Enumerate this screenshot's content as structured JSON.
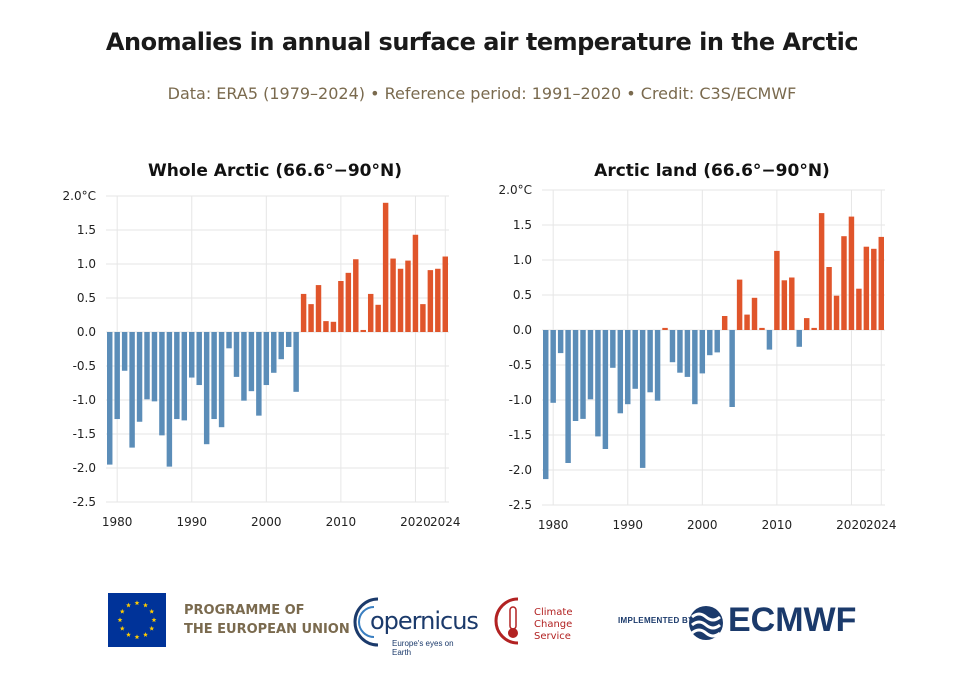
{
  "header": {
    "title": "Anomalies in annual surface air temperature in the Arctic",
    "subtitle": "Data: ERA5 (1979–2024) • Reference period: 1991–2020 • Credit: C3S/ECMWF"
  },
  "colors": {
    "negative": "#5b8db8",
    "positive": "#e0552b",
    "grid": "#e6e6e6"
  },
  "chart_data": [
    {
      "type": "bar",
      "title": "Whole Arctic (66.6°−90°N)",
      "x": [
        1979,
        1980,
        1981,
        1982,
        1983,
        1984,
        1985,
        1986,
        1987,
        1988,
        1989,
        1990,
        1991,
        1992,
        1993,
        1994,
        1995,
        1996,
        1997,
        1998,
        1999,
        2000,
        2001,
        2002,
        2003,
        2004,
        2005,
        2006,
        2007,
        2008,
        2009,
        2010,
        2011,
        2012,
        2013,
        2014,
        2015,
        2016,
        2017,
        2018,
        2019,
        2020,
        2021,
        2022,
        2023,
        2024
      ],
      "values": [
        -1.95,
        -1.28,
        -0.57,
        -1.7,
        -1.32,
        -0.99,
        -1.02,
        -1.52,
        -1.98,
        -1.28,
        -1.3,
        -0.67,
        -0.78,
        -1.65,
        -1.28,
        -1.4,
        -0.24,
        -0.66,
        -1.01,
        -0.87,
        -1.23,
        -0.78,
        -0.6,
        -0.4,
        -0.22,
        -0.88,
        0.56,
        0.41,
        0.69,
        0.16,
        0.15,
        0.75,
        0.87,
        1.07,
        0.03,
        0.56,
        0.4,
        1.9,
        1.08,
        0.93,
        1.05,
        1.43,
        0.41,
        0.91,
        0.93,
        1.11
      ],
      "ylim": [
        -2.5,
        2.0
      ],
      "yticks": [
        "2.0°C",
        "1.5",
        "1.0",
        "0.5",
        "0.0",
        "-0.5",
        "-1.0",
        "-1.5",
        "-2.0",
        "-2.5"
      ],
      "ytick_values": [
        2.0,
        1.5,
        1.0,
        0.5,
        0.0,
        -0.5,
        -1.0,
        -1.5,
        -2.0,
        -2.5
      ],
      "xticks": [
        "1980",
        "1990",
        "2000",
        "2010",
        "2020",
        "2024"
      ],
      "xtick_values": [
        1980,
        1990,
        2000,
        2010,
        2020,
        2024
      ],
      "grid": true
    },
    {
      "type": "bar",
      "title": "Arctic land (66.6°−90°N)",
      "x": [
        1979,
        1980,
        1981,
        1982,
        1983,
        1984,
        1985,
        1986,
        1987,
        1988,
        1989,
        1990,
        1991,
        1992,
        1993,
        1994,
        1995,
        1996,
        1997,
        1998,
        1999,
        2000,
        2001,
        2002,
        2003,
        2004,
        2005,
        2006,
        2007,
        2008,
        2009,
        2010,
        2011,
        2012,
        2013,
        2014,
        2015,
        2016,
        2017,
        2018,
        2019,
        2020,
        2021,
        2022,
        2023,
        2024
      ],
      "values": [
        -2.13,
        -1.04,
        -0.33,
        -1.9,
        -1.3,
        -1.27,
        -0.99,
        -1.52,
        -1.7,
        -0.54,
        -1.19,
        -1.06,
        -0.84,
        -1.97,
        -0.89,
        -1.01,
        0.03,
        -0.46,
        -0.61,
        -0.67,
        -1.06,
        -0.62,
        -0.36,
        -0.32,
        0.2,
        -1.1,
        0.72,
        0.22,
        0.46,
        0.03,
        -0.28,
        1.13,
        0.71,
        0.75,
        -0.24,
        0.17,
        0.03,
        1.67,
        0.9,
        0.49,
        1.34,
        1.62,
        0.59,
        1.19,
        1.16,
        1.33
      ],
      "ylim": [
        -2.5,
        2.0
      ],
      "yticks": [
        "2.0°C",
        "1.5",
        "1.0",
        "0.5",
        "0.0",
        "-0.5",
        "-1.0",
        "-1.5",
        "-2.0",
        "-2.5"
      ],
      "ytick_values": [
        2.0,
        1.5,
        1.0,
        0.5,
        0.0,
        -0.5,
        -1.0,
        -1.5,
        -2.0,
        -2.5
      ],
      "xticks": [
        "1980",
        "1990",
        "2000",
        "2010",
        "2020",
        "2024"
      ],
      "xtick_values": [
        1980,
        1990,
        2000,
        2010,
        2020,
        2024
      ],
      "grid": true
    }
  ],
  "footer": {
    "eu_text_line1": "PROGRAMME OF",
    "eu_text_line2": "THE EUROPEAN UNION",
    "copernicus": "opernicus",
    "copernicus_tag": "Europe's eyes on Earth",
    "c3s_line1": "Climate",
    "c3s_line2": "Change Service",
    "implemented_by": "IMPLEMENTED BY",
    "ecmwf": "ECMWF"
  }
}
